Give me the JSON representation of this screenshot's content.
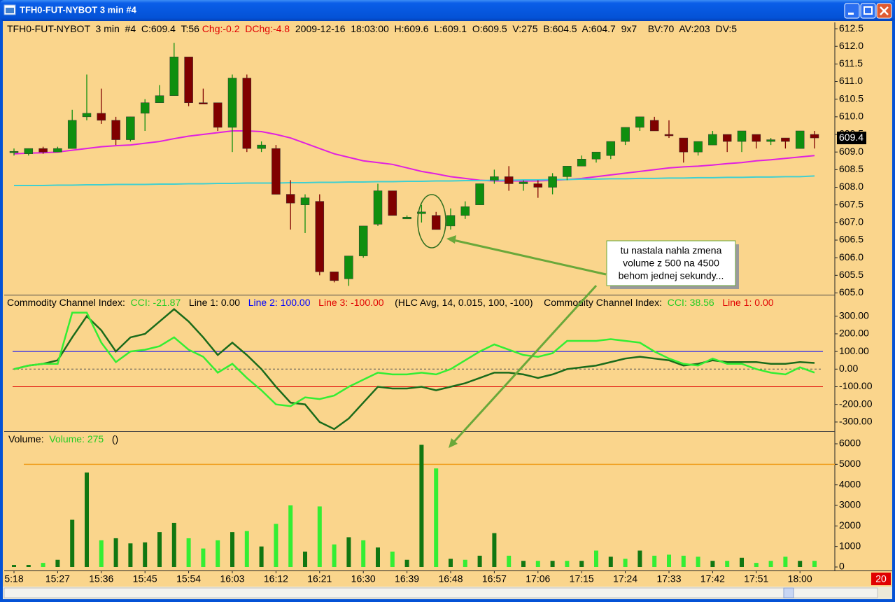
{
  "window": {
    "title": "TFH0-FUT-NYBOT  3 min  #4",
    "corner_label": "20"
  },
  "annotation": {
    "lines": [
      "tu nastala nahla zmena",
      "volume z 500 na 4500",
      "behom jednej sekundy..."
    ]
  },
  "chart_data": [
    {
      "type": "candlestick",
      "legend": [
        {
          "text": "TFH0-FUT-NYBOT  3 min  #4  C:609.4  T:56 ",
          "color": "#000000"
        },
        {
          "text": "Chg:-0.2",
          "color": "#e00000"
        },
        {
          "text": "  ",
          "color": "#000000"
        },
        {
          "text": "DChg:-4.8",
          "color": "#e00000"
        },
        {
          "text": "  2009-12-16  18:03:00  H:609.6  L:609.1  O:609.5  V:275  B:604.5  A:604.7  9x7    BV:70  AV:203  DV:5",
          "color": "#000000"
        }
      ],
      "up_color": "#0f8f0f",
      "down_color": "#800000",
      "open": [
        609.0,
        608.95,
        609.1,
        609.0,
        609.1,
        610.0,
        610.1,
        609.9,
        609.35,
        610.1,
        610.4,
        610.6,
        611.7,
        610.4,
        610.4,
        609.7,
        611.1,
        609.1,
        609.1,
        607.8,
        607.5,
        607.6,
        605.6,
        605.4,
        606.05,
        606.95,
        607.9,
        607.1,
        607.25,
        607.2,
        606.9,
        607.2,
        607.5,
        608.2,
        608.3,
        608.1,
        608.1,
        608.0,
        608.3,
        608.6,
        608.8,
        608.9,
        609.3,
        609.7,
        609.9,
        609.5,
        609.4,
        609.0,
        609.2,
        609.5,
        609.3,
        609.5,
        609.3,
        609.4,
        609.1,
        609.5
      ],
      "high": [
        609.1,
        609.1,
        609.15,
        609.15,
        610.2,
        611.2,
        610.8,
        610.0,
        610.0,
        610.5,
        610.9,
        612.1,
        611.7,
        610.8,
        610.4,
        611.2,
        611.2,
        609.3,
        609.2,
        608.2,
        607.8,
        607.8,
        605.6,
        606.05,
        606.9,
        608.1,
        607.9,
        607.2,
        607.5,
        607.3,
        607.4,
        607.6,
        608.1,
        608.5,
        608.6,
        608.2,
        608.2,
        608.4,
        608.6,
        608.9,
        609.0,
        609.3,
        609.7,
        610.0,
        610.0,
        609.9,
        609.4,
        609.3,
        609.6,
        609.5,
        609.6,
        609.5,
        609.4,
        609.4,
        609.6,
        609.6
      ],
      "low": [
        608.9,
        608.9,
        608.95,
        609.0,
        609.1,
        609.9,
        609.8,
        609.2,
        609.3,
        609.6,
        610.4,
        610.6,
        610.3,
        610.4,
        609.6,
        609.0,
        609.0,
        609.0,
        607.8,
        606.8,
        606.7,
        605.5,
        605.3,
        605.2,
        606.0,
        606.9,
        607.2,
        607.1,
        607.0,
        606.8,
        606.8,
        607.1,
        607.5,
        608.1,
        607.9,
        607.9,
        607.7,
        607.8,
        608.2,
        608.6,
        608.7,
        608.8,
        609.2,
        609.6,
        609.6,
        609.4,
        608.7,
        608.9,
        609.2,
        609.0,
        609.0,
        609.1,
        609.2,
        609.1,
        609.1,
        609.1
      ],
      "close": [
        609.02,
        609.1,
        609.0,
        609.1,
        609.9,
        610.1,
        609.9,
        609.35,
        610.0,
        610.4,
        610.6,
        611.7,
        610.4,
        610.4,
        609.7,
        611.1,
        609.1,
        609.2,
        607.8,
        607.55,
        607.7,
        605.6,
        605.35,
        606.05,
        606.9,
        607.9,
        607.2,
        607.15,
        607.3,
        606.8,
        607.2,
        607.45,
        608.1,
        608.3,
        608.1,
        608.15,
        608.0,
        608.3,
        608.6,
        608.8,
        609.0,
        609.3,
        609.7,
        610.0,
        609.6,
        609.5,
        609.0,
        609.3,
        609.5,
        609.3,
        609.6,
        609.3,
        609.35,
        609.3,
        609.6,
        609.4
      ],
      "series": [
        {
          "color": "#e020e0",
          "values": [
            608.95,
            608.97,
            608.98,
            609.0,
            609.05,
            609.1,
            609.15,
            609.18,
            609.2,
            609.25,
            609.3,
            609.38,
            609.45,
            609.5,
            609.55,
            609.6,
            609.6,
            609.58,
            609.5,
            609.4,
            609.25,
            609.1,
            608.95,
            608.85,
            608.75,
            608.7,
            608.65,
            608.55,
            608.45,
            608.38,
            608.3,
            608.25,
            608.2,
            608.18,
            608.18,
            608.18,
            608.18,
            608.2,
            608.22,
            608.25,
            608.3,
            608.35,
            608.4,
            608.45,
            608.5,
            608.55,
            608.58,
            608.6,
            608.63,
            608.67,
            608.7,
            608.75,
            608.78,
            608.82,
            608.86,
            608.9
          ]
        },
        {
          "color": "#40d0d0",
          "values": [
            608.05,
            608.05,
            608.05,
            608.06,
            608.06,
            608.07,
            608.07,
            608.08,
            608.08,
            608.08,
            608.09,
            608.09,
            608.1,
            608.1,
            608.11,
            608.11,
            608.12,
            608.12,
            608.12,
            608.13,
            608.13,
            608.14,
            608.14,
            608.15,
            608.15,
            608.16,
            608.16,
            608.17,
            608.17,
            608.18,
            608.18,
            608.19,
            608.19,
            608.2,
            608.2,
            608.21,
            608.21,
            608.22,
            608.22,
            608.23,
            608.23,
            608.24,
            608.24,
            608.25,
            608.25,
            608.26,
            608.26,
            608.27,
            608.27,
            608.28,
            608.28,
            608.29,
            608.29,
            608.3,
            608.3,
            608.32
          ]
        }
      ],
      "last_price": 609.4,
      "ylim": [
        604.95,
        612.66
      ],
      "yticks": [
        612.5,
        {
          "value": 612.0,
          "label": "612.0"
        },
        611.5,
        {
          "value": 611.0,
          "label": "611.0"
        },
        610.5,
        {
          "value": 610.0,
          "label": "610.0"
        },
        609.5,
        {
          "value": 609.0,
          "label": "609.0"
        },
        608.5,
        {
          "value": 608.0,
          "label": "608.0"
        },
        607.5,
        {
          "value": 607.0,
          "label": "607.0"
        },
        606.5,
        {
          "value": 606.0,
          "label": "606.0"
        },
        605.5,
        {
          "value": 605.0,
          "label": "605.0"
        }
      ]
    },
    {
      "type": "line",
      "legend": [
        {
          "text": "Commodity Channel Index:  ",
          "color": "#000000"
        },
        {
          "text": "CCI: -21.87",
          "color": "#22cc22"
        },
        {
          "text": "   Line 1: 0.00   ",
          "color": "#000000"
        },
        {
          "text": "Line 2: 100.00",
          "color": "#0000ff"
        },
        {
          "text": "   ",
          "color": "#000000"
        },
        {
          "text": "Line 3: -100.00",
          "color": "#e00000"
        },
        {
          "text": "    (HLC Avg, 14, 0.015, 100, -100)    Commodity Channel Index:  ",
          "color": "#000000"
        },
        {
          "text": "CCI: 38.56",
          "color": "#22cc22"
        },
        {
          "text": "   ",
          "color": "#000000"
        },
        {
          "text": "Line 1: 0.00",
          "color": "#e00000"
        }
      ],
      "series": [
        {
          "color": "#1a6b1a",
          "values": [
            0,
            20,
            30,
            50,
            180,
            300,
            220,
            100,
            180,
            200,
            270,
            340,
            270,
            180,
            80,
            150,
            80,
            0,
            -100,
            -190,
            -200,
            -300,
            -340,
            -280,
            -190,
            -100,
            -110,
            -110,
            -100,
            -120,
            -100,
            -80,
            -50,
            -20,
            -20,
            -30,
            -50,
            -30,
            0,
            10,
            20,
            40,
            60,
            70,
            60,
            50,
            20,
            30,
            50,
            40,
            40,
            40,
            30,
            30,
            40,
            35
          ]
        },
        {
          "color": "#33ee33",
          "values": [
            0,
            20,
            30,
            30,
            320,
            320,
            150,
            40,
            100,
            110,
            130,
            180,
            110,
            70,
            -20,
            30,
            -50,
            -120,
            -200,
            -210,
            -160,
            -170,
            -150,
            -100,
            -60,
            -20,
            -30,
            -30,
            -20,
            -30,
            0,
            50,
            100,
            140,
            110,
            80,
            70,
            90,
            160,
            160,
            160,
            170,
            160,
            150,
            100,
            60,
            30,
            20,
            60,
            30,
            30,
            0,
            -20,
            -30,
            10,
            -20
          ]
        }
      ],
      "levels": [
        {
          "value": 100,
          "color": "#0000ff"
        },
        {
          "value": 0,
          "color": "#555555"
        },
        {
          "value": -100,
          "color": "#e00000"
        }
      ],
      "ylim": [
        -352,
        414
      ],
      "yticks": [
        {
          "value": 300,
          "label": "300.00"
        },
        {
          "value": 200,
          "label": "200.00"
        },
        {
          "value": 100,
          "label": "100.00"
        },
        {
          "value": 0,
          "label": "0.00"
        },
        {
          "value": -100,
          "label": "-100.00"
        },
        {
          "value": -200,
          "label": "-200.00"
        },
        {
          "value": -300,
          "label": "-300.00"
        }
      ]
    },
    {
      "type": "bar",
      "legend": [
        {
          "text": "Volume:  ",
          "color": "#000000"
        },
        {
          "text": "Volume: 275",
          "color": "#22cc22"
        },
        {
          "text": "   ()",
          "color": "#000000"
        }
      ],
      "categories": [
        "5:18",
        null,
        null,
        "15:27",
        null,
        null,
        "15:36",
        null,
        null,
        "15:45",
        null,
        null,
        "15:54",
        null,
        null,
        "16:03",
        null,
        null,
        "16:12",
        null,
        null,
        "16:21",
        null,
        null,
        "16:30",
        null,
        null,
        "16:39",
        null,
        null,
        "16:48",
        null,
        null,
        "16:57",
        null,
        null,
        "17:06",
        null,
        null,
        "17:15",
        null,
        null,
        "17:24",
        null,
        null,
        "17:33",
        null,
        null,
        "17:42",
        null,
        null,
        "17:51",
        null,
        null,
        "18:00",
        null
      ],
      "values": [
        100,
        100,
        200,
        350,
        2300,
        4600,
        1300,
        1400,
        1150,
        1200,
        1700,
        2150,
        1400,
        900,
        1300,
        1700,
        1750,
        1000,
        2100,
        3000,
        750,
        2950,
        1100,
        1450,
        1300,
        950,
        750,
        350,
        5950,
        4800,
        400,
        350,
        550,
        1650,
        550,
        300,
        300,
        300,
        300,
        300,
        800,
        500,
        400,
        800,
        550,
        600,
        550,
        500,
        300,
        300,
        450,
        200,
        300,
        500,
        300,
        300
      ],
      "colors": [
        "#117711",
        "#117711",
        "#33ee33",
        "#117711",
        "#117711",
        "#117711",
        "#33ee33",
        "#117711",
        "#117711",
        "#117711",
        "#117711",
        "#117711",
        "#33ee33",
        "#33ee33",
        "#33ee33",
        "#117711",
        "#33ee33",
        "#117711",
        "#33ee33",
        "#33ee33",
        "#117711",
        "#33ee33",
        "#33ee33",
        "#117711",
        "#33ee33",
        "#117711",
        "#33ee33",
        "#117711",
        "#117711",
        "#33ee33",
        "#117711",
        "#33ee33",
        "#117711",
        "#117711",
        "#33ee33",
        "#117711",
        "#33ee33",
        "#117711",
        "#33ee33",
        "#117711",
        "#33ee33",
        "#117711",
        "#33ee33",
        "#117711",
        "#33ee33",
        "#33ee33",
        "#33ee33",
        "#33ee33",
        "#117711",
        "#33ee33",
        "#117711",
        "#33ee33",
        "#33ee33",
        "#33ee33",
        "#117711",
        "#33ee33"
      ],
      "reference_line": {
        "value": 5000,
        "color": "#f0a020"
      },
      "ylim": [
        0,
        6545
      ],
      "yticks": [
        6000,
        5000,
        4000,
        3000,
        2000,
        1000,
        0
      ]
    }
  ]
}
